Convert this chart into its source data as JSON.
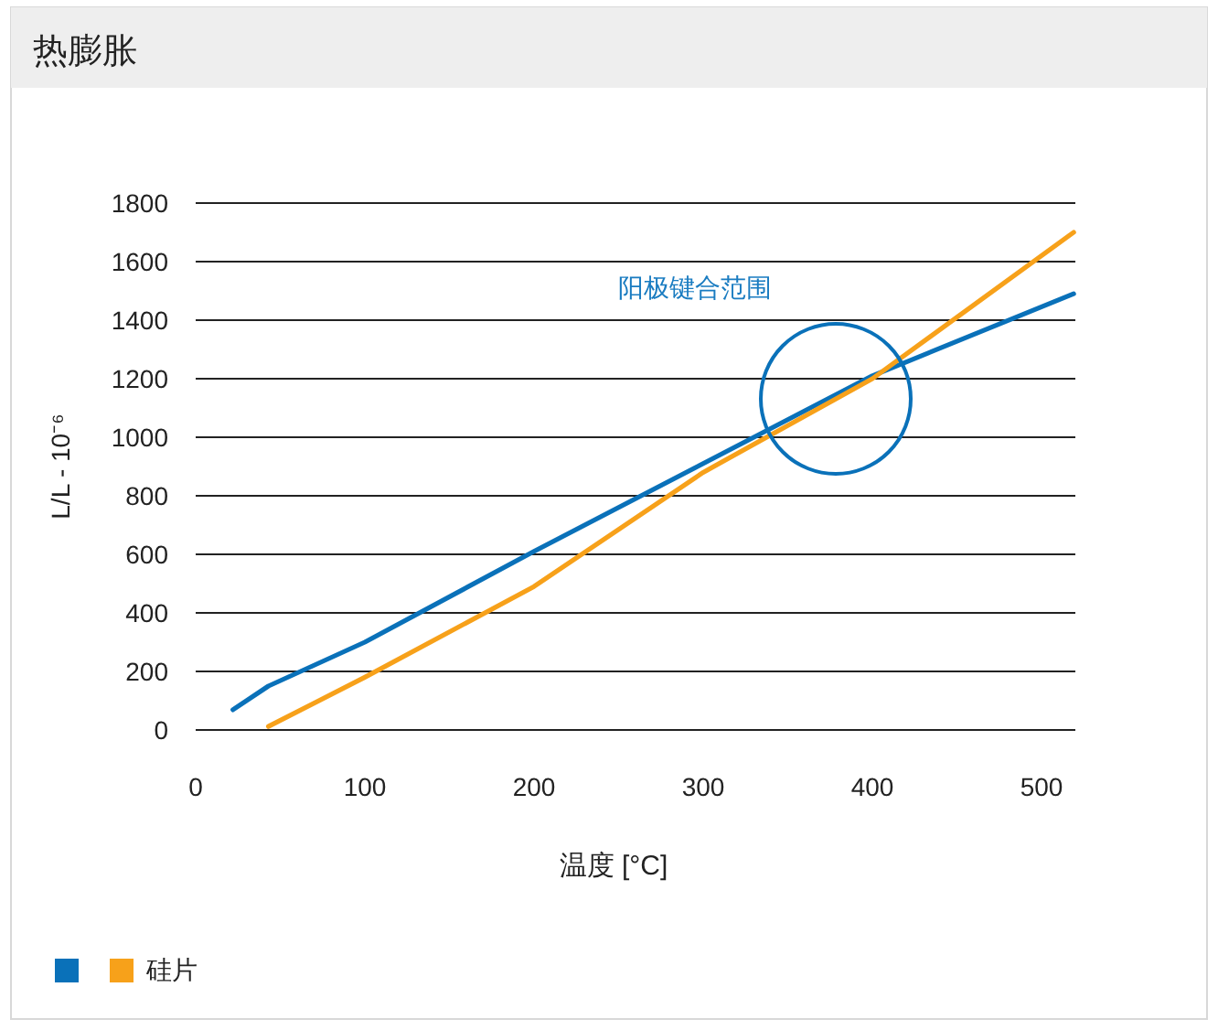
{
  "chart_data": {
    "type": "line",
    "title": "热膨胀",
    "xlabel": "温度 [°C]",
    "ylabel": "L/L - 10⁻⁶",
    "xlim": [
      0,
      520
    ],
    "ylim": [
      0,
      1800
    ],
    "xticks": [
      0,
      100,
      200,
      300,
      400,
      500
    ],
    "yticks": [
      0,
      200,
      400,
      600,
      800,
      1000,
      1200,
      1400,
      1600,
      1800
    ],
    "grid": "y",
    "legend": "bottom left",
    "marker": "none",
    "line_style": "solid",
    "annotations": [
      "阳极键合范围"
    ],
    "series": [
      {
        "color": "#0a71b9",
        "x": [
          22,
          43,
          100,
          200,
          300,
          400,
          519
        ],
        "values": [
          69,
          150,
          300,
          610,
          910,
          1210,
          1490
        ]
      },
      {
        "name": "硅片",
        "color": "#f7a11a",
        "x": [
          43,
          100,
          200,
          300,
          400,
          519
        ],
        "values": [
          12,
          180,
          490,
          880,
          1200,
          1700
        ]
      }
    ]
  }
}
